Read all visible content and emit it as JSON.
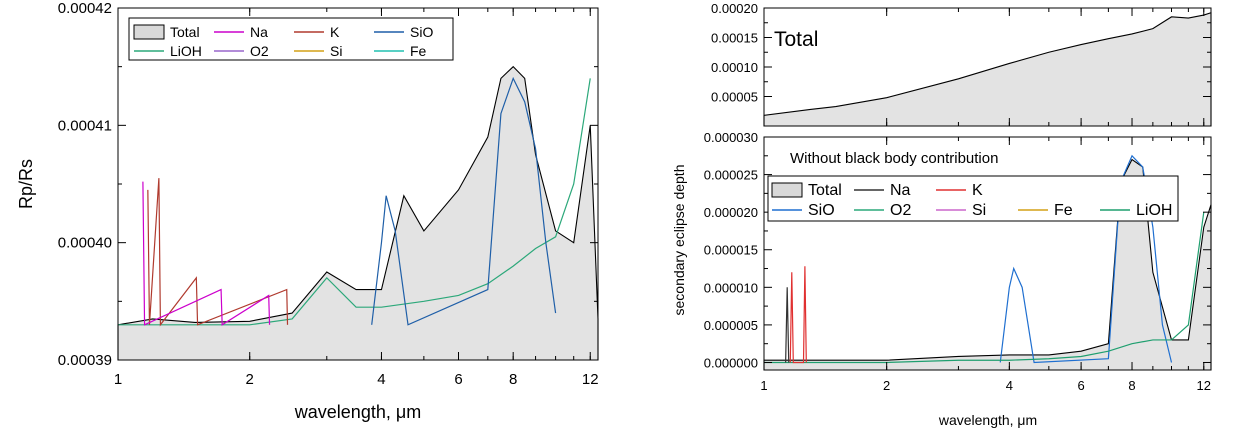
{
  "chart_data": [
    {
      "type": "area",
      "xlabel": "wavelength, μm",
      "ylabel": "Rp/Rs",
      "xscale": "log",
      "xlim": [
        1,
        12.5
      ],
      "ylim": [
        0.00039,
        0.00042
      ],
      "xticks": [
        1,
        2,
        4,
        6,
        8,
        12
      ],
      "xtick_labels": [
        "1",
        "2",
        "4",
        "6",
        "8",
        "12"
      ],
      "yticks": [
        0.00039,
        0.0004,
        0.00041,
        0.00042
      ],
      "ytick_labels": [
        "0.00039",
        "0.00040",
        "0.00041",
        "0.00042"
      ],
      "legend_position": "top-left",
      "legend": [
        {
          "name": "Total",
          "color": "#d9d9d9",
          "kind": "box"
        },
        {
          "name": "Na",
          "color": "#cc00cc"
        },
        {
          "name": "K",
          "color": "#b03a2e"
        },
        {
          "name": "SiO",
          "color": "#1f5fa8"
        },
        {
          "name": "LiOH",
          "color": "#2ca87a"
        },
        {
          "name": "O2",
          "color": "#9966cc"
        },
        {
          "name": "Si",
          "color": "#d4a017"
        },
        {
          "name": "Fe",
          "color": "#20c0b0"
        }
      ],
      "series": [
        {
          "name": "Total",
          "x": [
            1,
            1.2,
            1.5,
            2,
            2.5,
            3,
            3.5,
            4,
            4.5,
            5,
            6,
            7,
            7.5,
            8,
            8.5,
            9,
            10,
            11,
            12,
            12.5
          ],
          "y": [
            0.000393,
            0.0003935,
            0.0003932,
            0.0003933,
            0.000394,
            0.0003975,
            0.000396,
            0.000396,
            0.000404,
            0.000401,
            0.0004045,
            0.000409,
            0.000414,
            0.000415,
            0.000414,
            0.0004075,
            0.000401,
            0.0004,
            0.00041,
            0.0003935
          ]
        },
        {
          "name": "LiOH",
          "x": [
            1,
            2,
            2.5,
            3,
            3.5,
            4,
            5,
            6,
            7,
            8,
            9,
            10,
            11,
            12
          ],
          "y": [
            0.000393,
            0.000393,
            0.0003935,
            0.000397,
            0.0003945,
            0.0003945,
            0.000395,
            0.0003955,
            0.0003965,
            0.000398,
            0.0003995,
            0.0004005,
            0.000405,
            0.000414
          ]
        },
        {
          "name": "SiO",
          "x": [
            3.8,
            4.0,
            4.1,
            4.3,
            4.6,
            7.0,
            7.5,
            8.0,
            8.5,
            9.0,
            9.5,
            10
          ],
          "y": [
            0.000393,
            0.0004,
            0.000404,
            0.000401,
            0.000393,
            0.000396,
            0.000411,
            0.000414,
            0.000412,
            0.000408,
            0.0004,
            0.000394
          ]
        },
        {
          "name": "K",
          "x": [
            1.17,
            1.18,
            1.24,
            1.25,
            1.51,
            1.52,
            2.43,
            2.44
          ],
          "y": [
            0.0004045,
            0.000393,
            0.0004055,
            0.000393,
            0.000397,
            0.000393,
            0.000396,
            0.000393
          ]
        },
        {
          "name": "Na",
          "x": [
            1.14,
            1.15,
            1.72,
            1.73,
            2.21,
            2.22
          ],
          "y": [
            0.0004052,
            0.000393,
            0.000396,
            0.000393,
            0.0003955,
            0.000393
          ]
        }
      ]
    },
    {
      "type": "area",
      "title": "Total",
      "xscale": "log",
      "xlim": [
        1,
        12.5
      ],
      "ylim": [
        0,
        0.0002
      ],
      "yticks": [
        5e-05,
        0.0001,
        0.00015,
        0.0002
      ],
      "ytick_labels": [
        "0.00005",
        "0.00010",
        "0.00015",
        "0.00020"
      ],
      "series": [
        {
          "name": "Total",
          "x": [
            1,
            1.3,
            1.5,
            2,
            3,
            4,
            5,
            6,
            7,
            8,
            9,
            10,
            11,
            12,
            12.5
          ],
          "y": [
            1.8e-05,
            2.8e-05,
            3.3e-05,
            4.8e-05,
            8e-05,
            0.000106,
            0.000125,
            0.000138,
            0.000148,
            0.000156,
            0.000165,
            0.000185,
            0.000183,
            0.000188,
            0.000192
          ]
        }
      ]
    },
    {
      "type": "line",
      "title": "Without black body contribution",
      "xlabel": "wavelength, μm",
      "ylabel": "secondary eclipse depth",
      "xscale": "log",
      "xlim": [
        1,
        12.5
      ],
      "ylim": [
        -1e-06,
        3e-05
      ],
      "xticks": [
        1,
        2,
        4,
        6,
        8,
        12
      ],
      "xtick_labels": [
        "1",
        "2",
        "4",
        "6",
        "8",
        "12"
      ],
      "yticks": [
        0,
        5e-06,
        1e-05,
        1.5e-05,
        2e-05,
        2.5e-05,
        3e-05
      ],
      "ytick_labels": [
        "0.000000",
        "0.000005",
        "0.000010",
        "0.000015",
        "0.000020",
        "0.000025",
        "0.000030"
      ],
      "legend_position": "top",
      "legend": [
        {
          "name": "Total",
          "color": "#d9d9d9",
          "kind": "box"
        },
        {
          "name": "Na",
          "color": "#333333"
        },
        {
          "name": "K",
          "color": "#e03030"
        },
        {
          "name": "SiO",
          "color": "#1f6fd0"
        },
        {
          "name": "O2",
          "color": "#2ca87a"
        },
        {
          "name": "Si",
          "color": "#cc66cc"
        },
        {
          "name": "Fe",
          "color": "#d4a017"
        },
        {
          "name": "LiOH",
          "color": "#1f9f6f"
        }
      ],
      "series": [
        {
          "name": "Total",
          "x": [
            1,
            2,
            3,
            4,
            5,
            6,
            7,
            7.5,
            8,
            8.5,
            9,
            10,
            11,
            12,
            12.5
          ],
          "y": [
            3e-07,
            3e-07,
            8e-07,
            1e-06,
            1e-06,
            1.5e-06,
            2.5e-06,
            2.4e-05,
            2.7e-05,
            2.6e-05,
            1.2e-05,
            3e-06,
            3e-06,
            1.8e-05,
            2.1e-05
          ]
        },
        {
          "name": "SiO",
          "x": [
            3.8,
            4.0,
            4.1,
            4.3,
            4.6,
            7.0,
            7.5,
            8.0,
            8.5,
            9.0,
            9.5,
            10
          ],
          "y": [
            0,
            1e-05,
            1.25e-05,
            1e-05,
            0,
            5e-07,
            2.4e-05,
            2.75e-05,
            2.6e-05,
            1.8e-05,
            5e-06,
            0
          ]
        },
        {
          "name": "LiOH",
          "x": [
            1,
            2,
            3,
            4,
            5,
            6,
            7,
            8,
            9,
            10,
            11,
            12
          ],
          "y": [
            0,
            0,
            3e-07,
            3e-07,
            5e-07,
            8e-07,
            1.5e-06,
            2.5e-06,
            3e-06,
            3e-06,
            5e-06,
            2e-05
          ]
        },
        {
          "name": "K",
          "x": [
            1.16,
            1.17,
            1.18,
            1.25,
            1.26,
            1.27
          ],
          "y": [
            0,
            1.2e-05,
            0,
            0,
            1.28e-05,
            0
          ]
        },
        {
          "name": "Na",
          "x": [
            1.13,
            1.14,
            1.15
          ],
          "y": [
            0,
            1e-05,
            0
          ]
        }
      ]
    }
  ]
}
